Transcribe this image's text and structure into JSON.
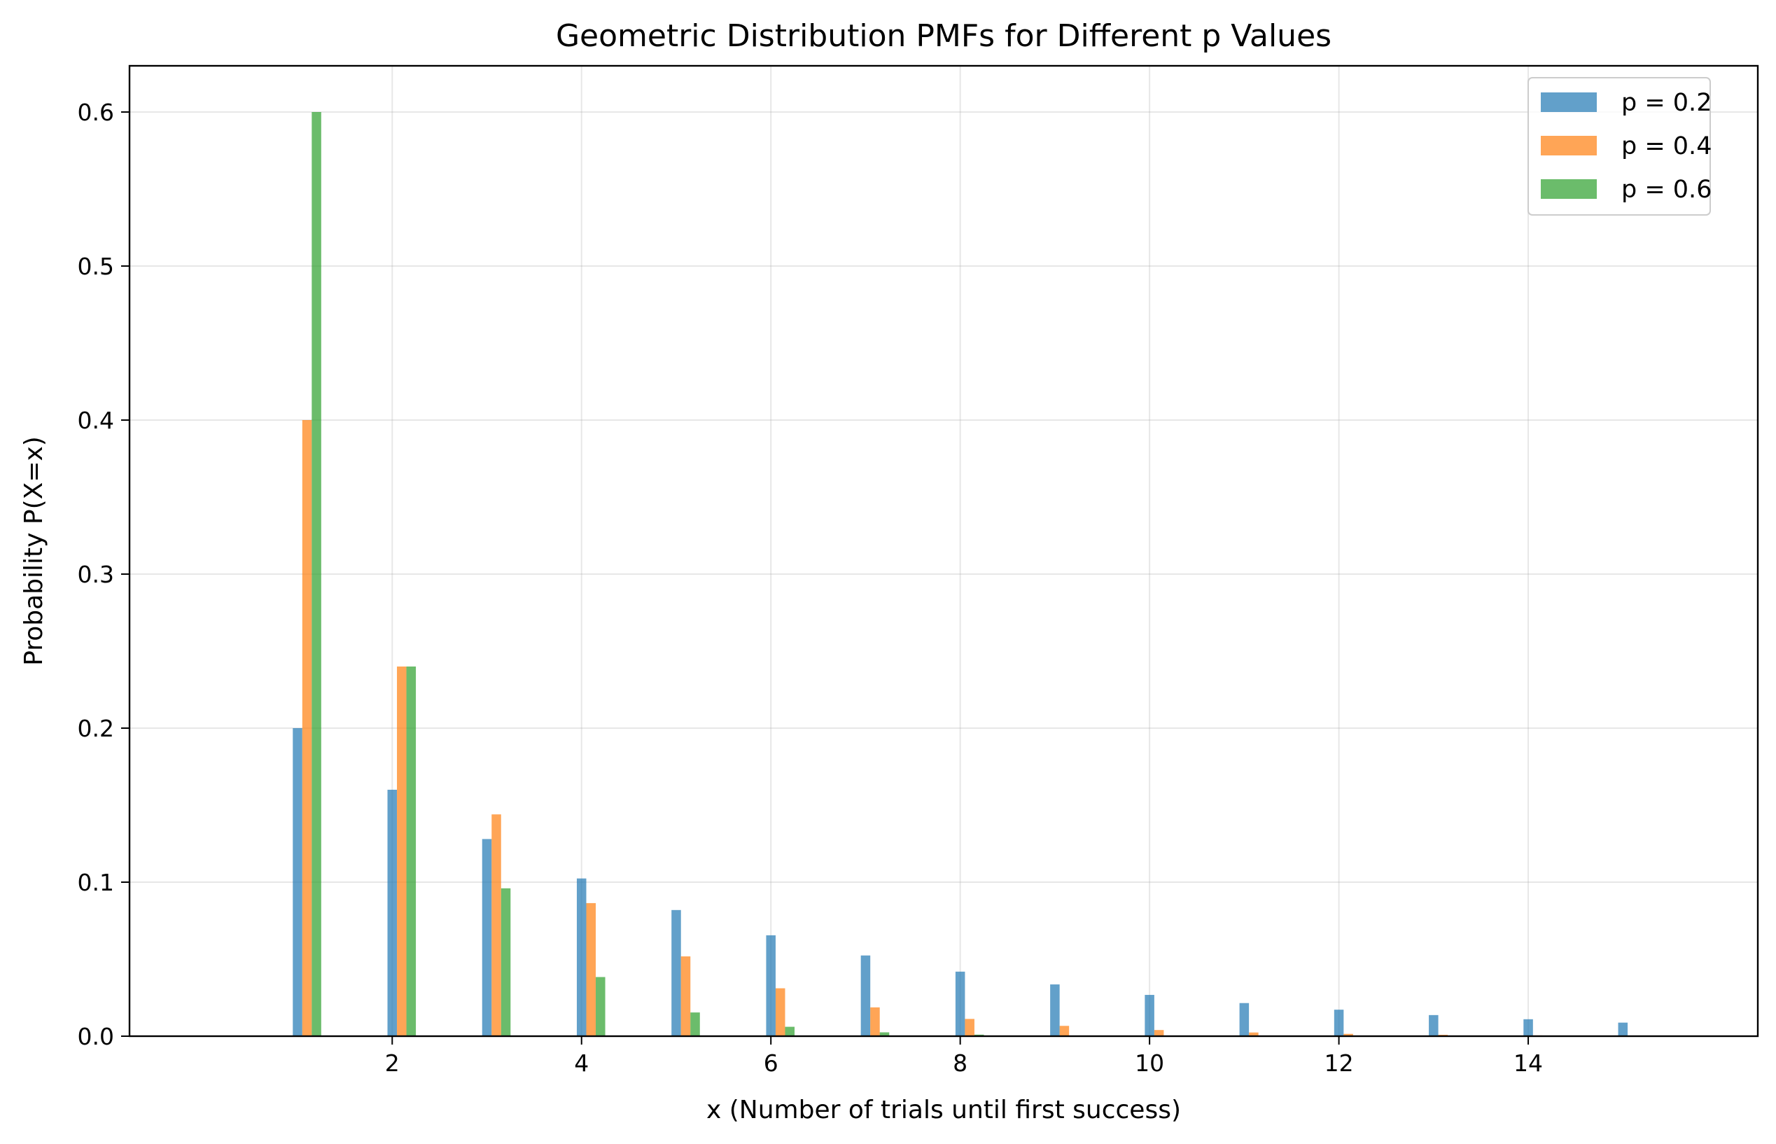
{
  "chart_data": {
    "type": "bar",
    "title": "Geometric Distribution PMFs for Different p Values",
    "xlabel": "x (Number of trials until first success)",
    "ylabel": "Probability P(X=x)",
    "x": [
      1,
      2,
      3,
      4,
      5,
      6,
      7,
      8,
      9,
      10,
      11,
      12,
      13,
      14,
      15
    ],
    "xlim": [
      -0.775,
      16.425
    ],
    "ylim": [
      0,
      0.63
    ],
    "xticks": [
      2,
      4,
      6,
      8,
      10,
      12,
      14
    ],
    "yticks": [
      0.0,
      0.1,
      0.2,
      0.3,
      0.4,
      0.5,
      0.6
    ],
    "xtick_labels": [
      "2",
      "4",
      "6",
      "8",
      "10",
      "12",
      "14"
    ],
    "ytick_labels": [
      "0.0",
      "0.1",
      "0.2",
      "0.3",
      "0.4",
      "0.5",
      "0.6"
    ],
    "grid": true,
    "legend_position": "top-right",
    "series": [
      {
        "name": "p = 0.2",
        "color": "#1f77b4",
        "values": [
          0.2,
          0.16,
          0.128,
          0.1024,
          0.0819,
          0.0655,
          0.0524,
          0.0419,
          0.0336,
          0.0268,
          0.0215,
          0.0172,
          0.0137,
          0.011,
          0.0088
        ]
      },
      {
        "name": "p = 0.4",
        "color": "#ff7f0e",
        "values": [
          0.4,
          0.24,
          0.144,
          0.0864,
          0.0518,
          0.0311,
          0.0187,
          0.0112,
          0.0067,
          0.004,
          0.0024,
          0.0015,
          0.0009,
          0.0005,
          0.0003
        ]
      },
      {
        "name": "p = 0.6",
        "color": "#2ca02c",
        "values": [
          0.6,
          0.24,
          0.096,
          0.0384,
          0.0154,
          0.0061,
          0.0025,
          0.001,
          0.0004,
          0.0002,
          0.0001,
          0.0,
          0.0,
          0.0,
          0.0
        ]
      }
    ]
  }
}
